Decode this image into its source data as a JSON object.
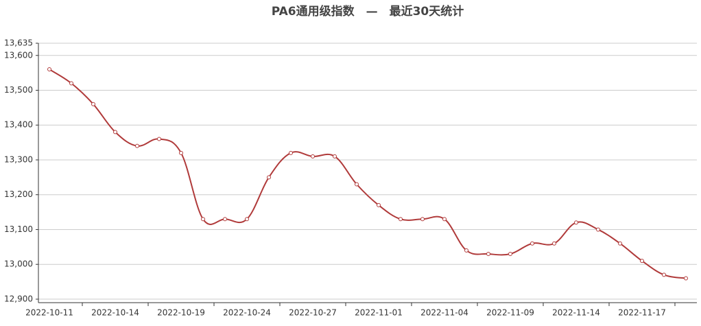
{
  "chart_data": {
    "type": "line",
    "title": "PA6通用级指数　—　最近30天统计",
    "categories": [
      "2022-10-11",
      null,
      null,
      "2022-10-14",
      null,
      null,
      "2022-10-19",
      null,
      null,
      "2022-10-24",
      null,
      null,
      "2022-10-27",
      null,
      null,
      "2022-11-01",
      null,
      null,
      "2022-11-04",
      null,
      null,
      "2022-11-09",
      null,
      null,
      "2022-11-14",
      null,
      null,
      "2022-11-17",
      null,
      null
    ],
    "values": [
      13560,
      13520,
      13460,
      13380,
      13340,
      13360,
      13320,
      13130,
      13130,
      13130,
      13250,
      13320,
      13310,
      13310,
      13230,
      13170,
      13130,
      13130,
      13130,
      13040,
      13030,
      13030,
      13060,
      13060,
      13120,
      13100,
      13060,
      13010,
      12970,
      12960
    ],
    "color": "#b03a3a",
    "ylim": [
      12890,
      13635
    ],
    "yticks": [
      {
        "value": 12900,
        "label": "12,900"
      },
      {
        "value": 13000,
        "label": "13,000"
      },
      {
        "value": 13100,
        "label": "13,100"
      },
      {
        "value": 13200,
        "label": "13,200"
      },
      {
        "value": 13300,
        "label": "13,300"
      },
      {
        "value": 13400,
        "label": "13,400"
      },
      {
        "value": 13500,
        "label": "13,500"
      },
      {
        "value": 13600,
        "label": "13,600"
      },
      {
        "value": 13635,
        "label": "13,635"
      }
    ],
    "grid": true
  }
}
